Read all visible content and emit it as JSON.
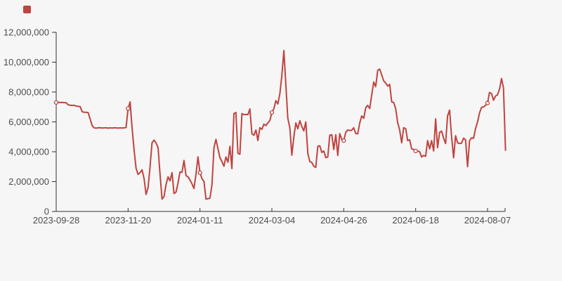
{
  "page": {
    "background_color": "#f6f6f6"
  },
  "chart_data": {
    "type": "line",
    "title": "",
    "grid": "off",
    "legend": {
      "position": "top-left",
      "items": [
        {
          "label": "",
          "icon": "red-square-icon",
          "color": "#bf4440"
        }
      ]
    },
    "axis_color": "#333333",
    "label_color": "#4d4d4d",
    "x": {
      "tick_labels": [
        "2023-09-28",
        "2023-11-20",
        "2024-01-11",
        "2024-03-04",
        "2024-04-26",
        "2024-06-18",
        "2024-08-07"
      ],
      "num_points": 226
    },
    "y": {
      "min": 0,
      "max": 12000000,
      "tick_labels": [
        "0",
        "2,000,000",
        "4,000,000",
        "6,000,000",
        "8,000,000",
        "10,000,000",
        "12,000,000"
      ]
    },
    "series": [
      {
        "name": "",
        "color": "#bf4440",
        "marker_indices": [
          0,
          36,
          72,
          108,
          144,
          180,
          216
        ],
        "values": [
          7300000,
          7310000,
          7300000,
          7300000,
          7290000,
          7280000,
          7140000,
          7120000,
          7100000,
          7110000,
          7060000,
          7040000,
          7020000,
          6680000,
          6650000,
          6640000,
          6620000,
          6200000,
          5750000,
          5600000,
          5580000,
          5600000,
          5610000,
          5590000,
          5600000,
          5600000,
          5580000,
          5600000,
          5590000,
          5600000,
          5600000,
          5580000,
          5600000,
          5590000,
          5600000,
          5630000,
          6900000,
          7340000,
          5600000,
          4100000,
          2900000,
          2480000,
          2600000,
          2790000,
          2200000,
          1140000,
          1600000,
          3000000,
          4600000,
          4780000,
          4600000,
          4280000,
          2500000,
          830000,
          1000000,
          1800000,
          2320000,
          2050000,
          2600000,
          1200000,
          1300000,
          1900000,
          2640000,
          2620000,
          3420000,
          2400000,
          2320000,
          2100000,
          1850000,
          1540000,
          2500000,
          3660000,
          2600000,
          2200000,
          2000000,
          830000,
          850000,
          900000,
          1770000,
          4280000,
          4830000,
          4200000,
          3600000,
          3340000,
          3030000,
          3650000,
          3300000,
          4360000,
          2870000,
          6560000,
          6630000,
          3890000,
          3840000,
          6560000,
          6480000,
          6500000,
          6480000,
          6870000,
          5200000,
          5100000,
          5460000,
          4750000,
          5610000,
          5500000,
          5850000,
          5750000,
          5930000,
          6100000,
          6630000,
          6870000,
          7420000,
          7200000,
          7890000,
          9100000,
          10780000,
          8500000,
          6240000,
          5610000,
          3770000,
          5000000,
          5930000,
          5540000,
          6080000,
          5690000,
          5400000,
          6000000,
          3890000,
          3340000,
          3280000,
          3030000,
          2950000,
          4360000,
          4400000,
          3950000,
          4050000,
          3600000,
          3650000,
          5100000,
          5140000,
          4150000,
          5140000,
          3750000,
          5220000,
          4830000,
          4750000,
          5300000,
          5460000,
          5420000,
          5440000,
          5610000,
          5220000,
          5200000,
          5930000,
          6400000,
          6240000,
          6950000,
          7100000,
          6900000,
          7800000,
          8670000,
          8360000,
          9460000,
          9540000,
          9150000,
          8750000,
          8600000,
          8400000,
          8520000,
          7340000,
          7300000,
          6900000,
          5950000,
          5460000,
          4600000,
          5610000,
          5550000,
          4750000,
          4800000,
          4200000,
          4150000,
          4050000,
          4050000,
          4000000,
          3650000,
          3750000,
          3700000,
          4750000,
          4200000,
          4750000,
          4050000,
          6200000,
          4280000,
          5300000,
          5380000,
          4900000,
          4550000,
          6400000,
          6790000,
          5000000,
          3600000,
          5070000,
          4600000,
          4550000,
          4570000,
          4910000,
          4800000,
          3000000,
          4750000,
          4930000,
          4900000,
          5550000,
          6000000,
          6600000,
          6980000,
          7000000,
          7110000,
          7260000,
          7970000,
          7900000,
          7450000,
          7730000,
          7810000,
          8200000,
          8910000,
          8280000,
          4100000
        ]
      }
    ]
  }
}
